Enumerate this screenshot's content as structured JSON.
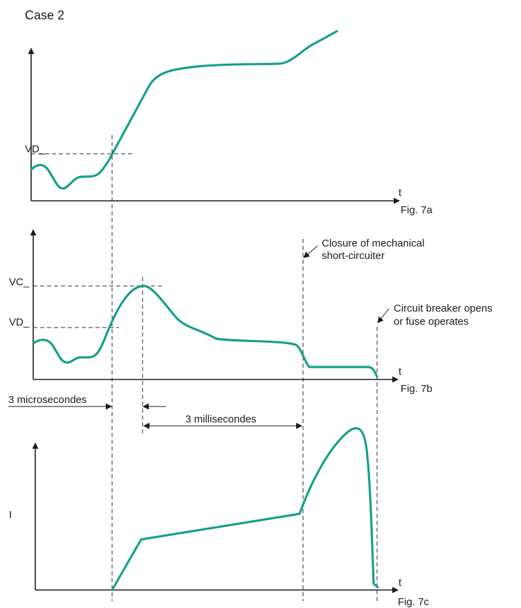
{
  "title": "Case 2",
  "colors": {
    "curve": "#14a089",
    "axis": "#1a1a1a"
  },
  "fig_a": {
    "caption": "Fig. 7a",
    "x_axis": "t",
    "vd_label": "VD_"
  },
  "fig_b": {
    "caption": "Fig. 7b",
    "x_axis": "t",
    "vc_label": "VC_",
    "vd_label": "VD_",
    "note_closure": [
      "Closure of mechanical",
      "short-circuiter"
    ],
    "note_breaker": [
      "Circuit breaker opens",
      "or fuse operates"
    ]
  },
  "intervals": {
    "micro": "3 microsecondes",
    "milli": "3 millisecondes"
  },
  "fig_c": {
    "caption": "Fig. 7c",
    "x_axis": "t",
    "y_axis": "I"
  }
}
